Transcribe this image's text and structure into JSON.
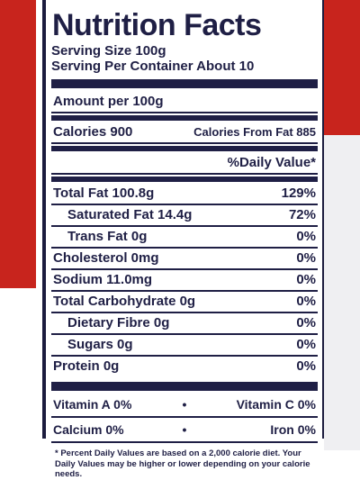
{
  "label": {
    "title": "Nutrition Facts",
    "serving_size": "Serving Size 100g",
    "servings_per_container": "Serving Per Container About 10",
    "amount_per": "Amount per 100g",
    "calories": "Calories 900",
    "calories_from_fat": "Calories From Fat 885",
    "daily_value_header": "%Daily Value*",
    "nutrients": [
      {
        "label": "Total Fat 100.8g",
        "dv": "129%"
      },
      {
        "label": "Saturated Fat 14.4g",
        "dv": "72%"
      },
      {
        "label": "Trans Fat 0g",
        "dv": "0%"
      },
      {
        "label": "Cholesterol 0mg",
        "dv": "0%"
      },
      {
        "label": "Sodium 11.0mg",
        "dv": "0%"
      },
      {
        "label": "Total Carbohydrate 0g",
        "dv": "0%"
      },
      {
        "label": "Dietary Fibre 0g",
        "dv": "0%"
      },
      {
        "label": "Sugars 0g",
        "dv": "0%"
      },
      {
        "label": "Protein 0g",
        "dv": "0%"
      }
    ],
    "vitamins": [
      {
        "left": "Vitamin A 0%",
        "dot": "•",
        "right": "Vitamin C 0%"
      },
      {
        "left": "Calcium 0%",
        "dot": "•",
        "right": "Iron 0%"
      }
    ],
    "footnote": "* Percent Daily Values are based on a 2,000 calorie diet. Your Daily Values may be higher or lower depending on your calorie needs."
  },
  "colors": {
    "ink": "#1f1f45",
    "brand_red": "#c8241d"
  }
}
